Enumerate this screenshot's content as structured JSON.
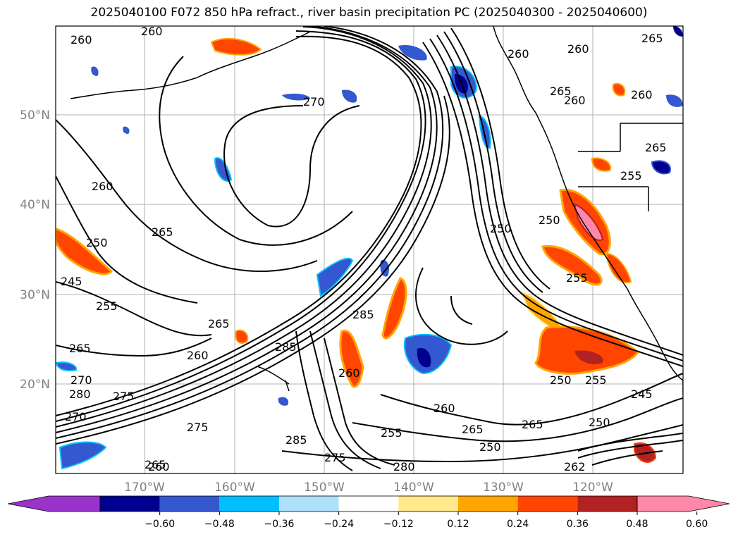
{
  "title": "2025040100 F072 850 hPa refract., river basin precipitation PC (2025040300 - 2025040600)",
  "lat_labels": [
    "50°N",
    "40°N",
    "30°N",
    "20°N"
  ],
  "lon_labels": [
    "170°W",
    "160°W",
    "150°W",
    "140°W",
    "130°W",
    "120°W"
  ],
  "colorbar": {
    "bins": [
      "#9933cc",
      "#000090",
      "#3358cf",
      "#00bfff",
      "#aee0fa",
      "#ffffff",
      "#ffe98c",
      "#ffa500",
      "#ff4500",
      "#b22222",
      "#ff88aa"
    ],
    "ticks": [
      "−0.60",
      "−0.48",
      "−0.36",
      "−0.24",
      "−0.12",
      "0.12",
      "0.24",
      "0.36",
      "0.48",
      "0.60"
    ]
  },
  "contour_labels": [
    "260",
    "260",
    "260",
    "260",
    "265",
    "260",
    "265",
    "270",
    "260",
    "265",
    "255",
    "260",
    "250",
    "250",
    "245",
    "255",
    "265",
    "265",
    "260",
    "270",
    "280",
    "275",
    "285",
    "285",
    "260",
    "260",
    "265",
    "255",
    "250",
    "265",
    "250",
    "255",
    "275",
    "245",
    "250",
    "262",
    "265",
    "280",
    "285",
    "270",
    "275",
    "260",
    "255",
    "250",
    "265"
  ]
}
